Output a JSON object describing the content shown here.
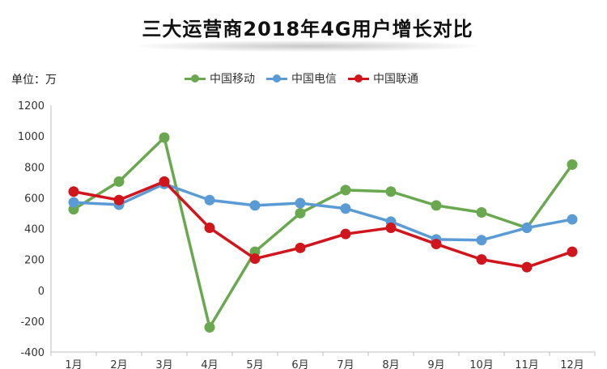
{
  "chart_data": {
    "type": "line",
    "title": "三大运营商2018年4G用户增长对比",
    "unit": "单位：万",
    "categories": [
      "1月",
      "2月",
      "3月",
      "4月",
      "5月",
      "6月",
      "7月",
      "8月",
      "9月",
      "10月",
      "11月",
      "12月"
    ],
    "ylim": [
      -400,
      1200
    ],
    "yticks": [
      -400,
      -200,
      0,
      200,
      400,
      600,
      800,
      1000,
      1200
    ],
    "grid": false,
    "legend": "top",
    "series": [
      {
        "name": "中国移动",
        "color": "#6aa84f",
        "values": [
          525,
          705,
          990,
          -240,
          250,
          500,
          650,
          640,
          550,
          505,
          405,
          815
        ]
      },
      {
        "name": "中国电信",
        "color": "#5b9bd5",
        "values": [
          570,
          555,
          690,
          585,
          550,
          565,
          530,
          445,
          330,
          325,
          405,
          460
        ]
      },
      {
        "name": "中国联通",
        "color": "#d0161c",
        "values": [
          640,
          585,
          705,
          405,
          205,
          275,
          365,
          405,
          300,
          200,
          150,
          250
        ]
      }
    ]
  }
}
